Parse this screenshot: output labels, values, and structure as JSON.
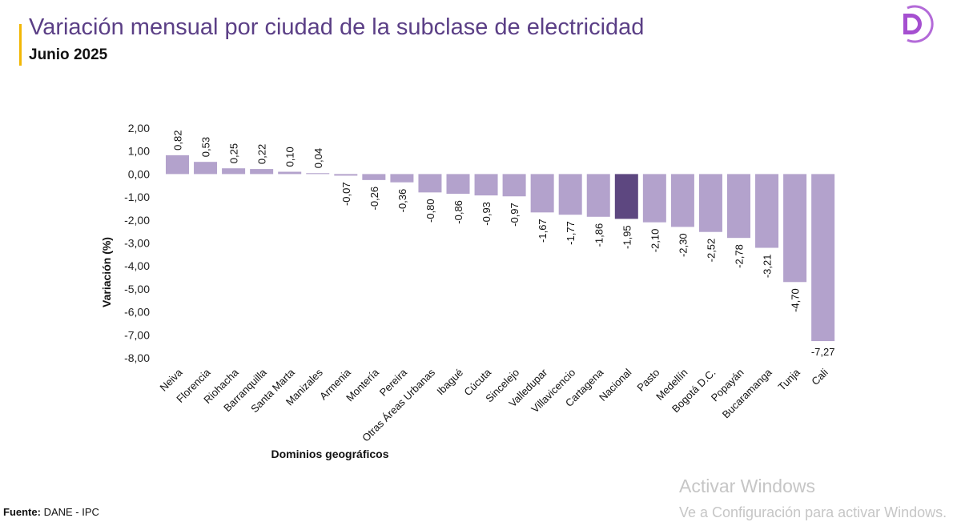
{
  "header": {
    "title": "Variación mensual por ciudad de la subclase de electricidad",
    "subtitle": "Junio 2025"
  },
  "footer": {
    "source_label": "Fuente:",
    "source_value": "DANE - IPC"
  },
  "watermark": {
    "title": "Activar Windows",
    "subtitle": "Ve a Configuración para activar Windows."
  },
  "colors": {
    "bar": "#b3a2cc",
    "highlight": "#5d4780",
    "title": "#5b3f86",
    "accent": "#f2b705"
  },
  "chart_data": {
    "type": "bar",
    "title": "Variación mensual por ciudad de la subclase de electricidad",
    "xlabel": "Dominios geográficos",
    "ylabel": "Variación (%)",
    "ylim": [
      -8,
      2
    ],
    "yticks": [
      "2,00",
      "1,00",
      "0,00",
      "-1,00",
      "-2,00",
      "-3,00",
      "-4,00",
      "-5,00",
      "-6,00",
      "-7,00",
      "-8,00"
    ],
    "highlight": "Nacional",
    "categories": [
      "Neiva",
      "Florencia",
      "Riohacha",
      "Barranquilla",
      "Santa Marta",
      "Manizales",
      "Armenia",
      "Montería",
      "Pereira",
      "Otras Áreas Urbanas",
      "Ibagué",
      "Cúcuta",
      "Sincelejo",
      "Valledupar",
      "Villavicencio",
      "Cartagena",
      "Nacional",
      "Pasto",
      "Medellín",
      "Bogotá D.C.",
      "Popayán",
      "Bucaramanga",
      "Tunja",
      "Cali"
    ],
    "values": [
      0.82,
      0.53,
      0.25,
      0.22,
      0.1,
      0.04,
      -0.07,
      -0.26,
      -0.36,
      -0.8,
      -0.86,
      -0.93,
      -0.97,
      -1.67,
      -1.77,
      -1.86,
      -1.95,
      -2.1,
      -2.3,
      -2.52,
      -2.78,
      -3.21,
      -4.7,
      -7.27
    ],
    "labels": [
      "0,82",
      "0,53",
      "0,25",
      "0,22",
      "0,10",
      "0,04",
      "-0,07",
      "-0,26",
      "-0,36",
      "-0,80",
      "-0,86",
      "-0,93",
      "-0,97",
      "-1,67",
      "-1,77",
      "-1,86",
      "-1,95",
      "-2,10",
      "-2,30",
      "-2,52",
      "-2,78",
      "-3,21",
      "-4,70",
      "-7,27"
    ]
  }
}
